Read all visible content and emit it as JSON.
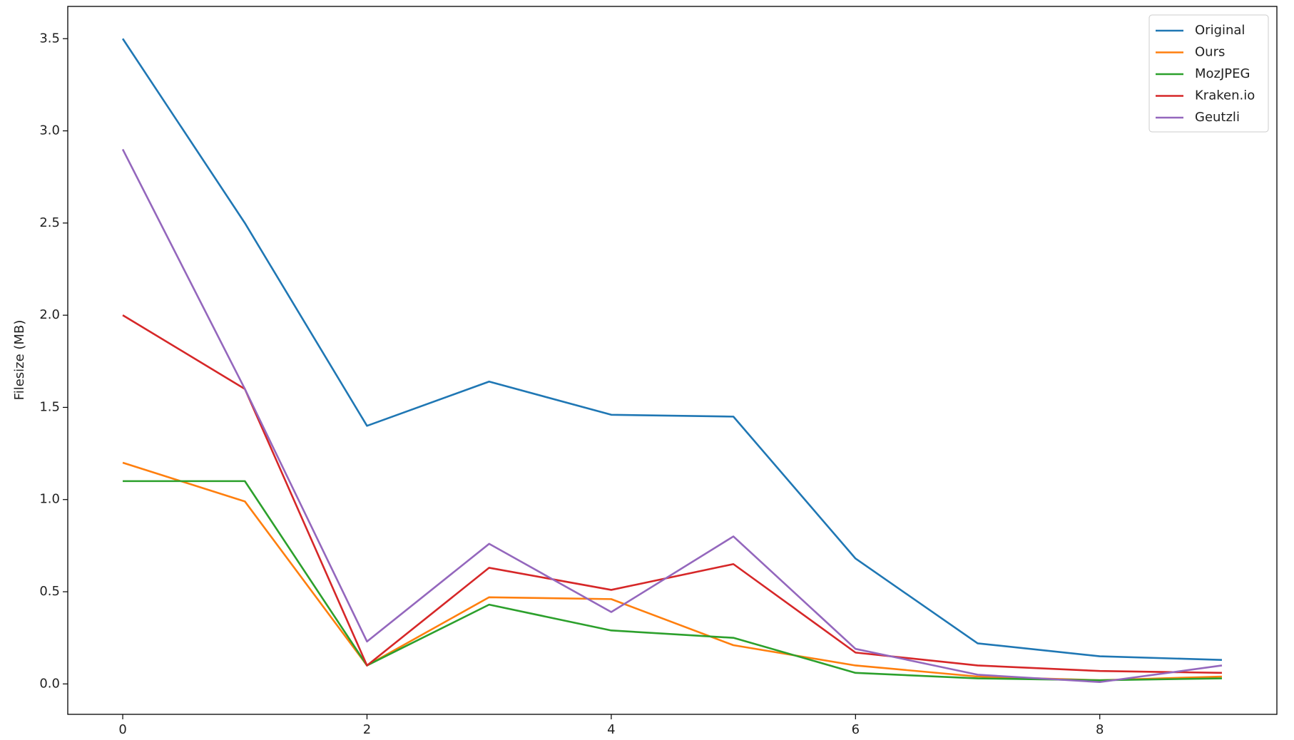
{
  "chart_data": {
    "type": "line",
    "y_label": "Filesize (MB)",
    "x": [
      0,
      1,
      2,
      3,
      4,
      5,
      6,
      7,
      8,
      9
    ],
    "series": [
      {
        "name": "Original",
        "color": "#1f77b4",
        "values": [
          3.5,
          2.5,
          1.4,
          1.64,
          1.46,
          1.45,
          0.68,
          0.22,
          0.15,
          0.13
        ]
      },
      {
        "name": "Ours",
        "color": "#ff7f0e",
        "values": [
          1.2,
          0.99,
          0.1,
          0.47,
          0.46,
          0.21,
          0.1,
          0.04,
          0.02,
          0.04
        ]
      },
      {
        "name": "MozJPEG",
        "color": "#2ca02c",
        "values": [
          1.1,
          1.1,
          0.1,
          0.43,
          0.29,
          0.25,
          0.06,
          0.03,
          0.02,
          0.03
        ]
      },
      {
        "name": "Kraken.io",
        "color": "#d62728",
        "values": [
          2.0,
          1.6,
          0.1,
          0.63,
          0.51,
          0.65,
          0.17,
          0.1,
          0.07,
          0.06
        ]
      },
      {
        "name": "Geutzli",
        "color": "#9467bd",
        "values": [
          2.9,
          1.6,
          0.23,
          0.76,
          0.39,
          0.8,
          0.19,
          0.05,
          0.01,
          0.1
        ]
      }
    ],
    "xlim": [
      -0.45,
      9.45
    ],
    "ylim": [
      -0.165,
      3.675
    ],
    "xticks": [
      0,
      2,
      4,
      6,
      8
    ],
    "yticks": [
      {
        "value": 0,
        "label": "0.0"
      },
      0.5,
      {
        "value": 1,
        "label": "1.0"
      },
      1.5,
      {
        "value": 2,
        "label": "2.0"
      },
      2.5,
      {
        "value": 3,
        "label": "3.0"
      },
      3.5
    ],
    "legend": "upper right",
    "grid": false
  }
}
